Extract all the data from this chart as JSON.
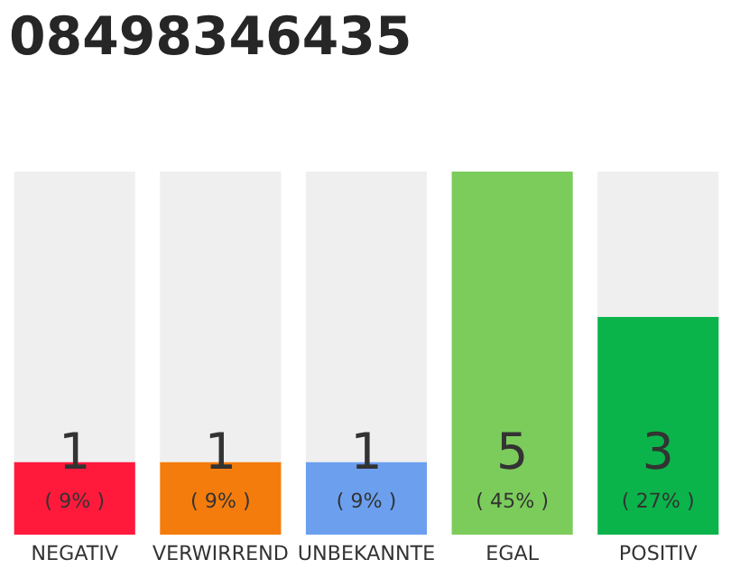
{
  "chart_data": {
    "type": "bar",
    "title": "08498346435",
    "categories": [
      "NEGATIV",
      "VERWIRREND",
      "UNBEKANNTE",
      "EGAL",
      "POSITIV"
    ],
    "stacked": true,
    "ylim": [
      0,
      5
    ],
    "tick_labels": "x",
    "grid": false,
    "legend": false,
    "series": [
      {
        "colors": [
          "#ff1a3c",
          "#f47c0c",
          "#6ca0ef",
          "#7ccc5c",
          "#0ab44a"
        ],
        "values": [
          1,
          1,
          1,
          5,
          3
        ],
        "data_labels": true
      },
      {
        "color": "#efefef",
        "values": [
          4,
          4,
          4,
          0,
          2
        ]
      }
    ],
    "annotations": [
      "( 9% )",
      "( 9% )",
      "( 9% )",
      "( 45% )",
      "( 27% )"
    ]
  }
}
